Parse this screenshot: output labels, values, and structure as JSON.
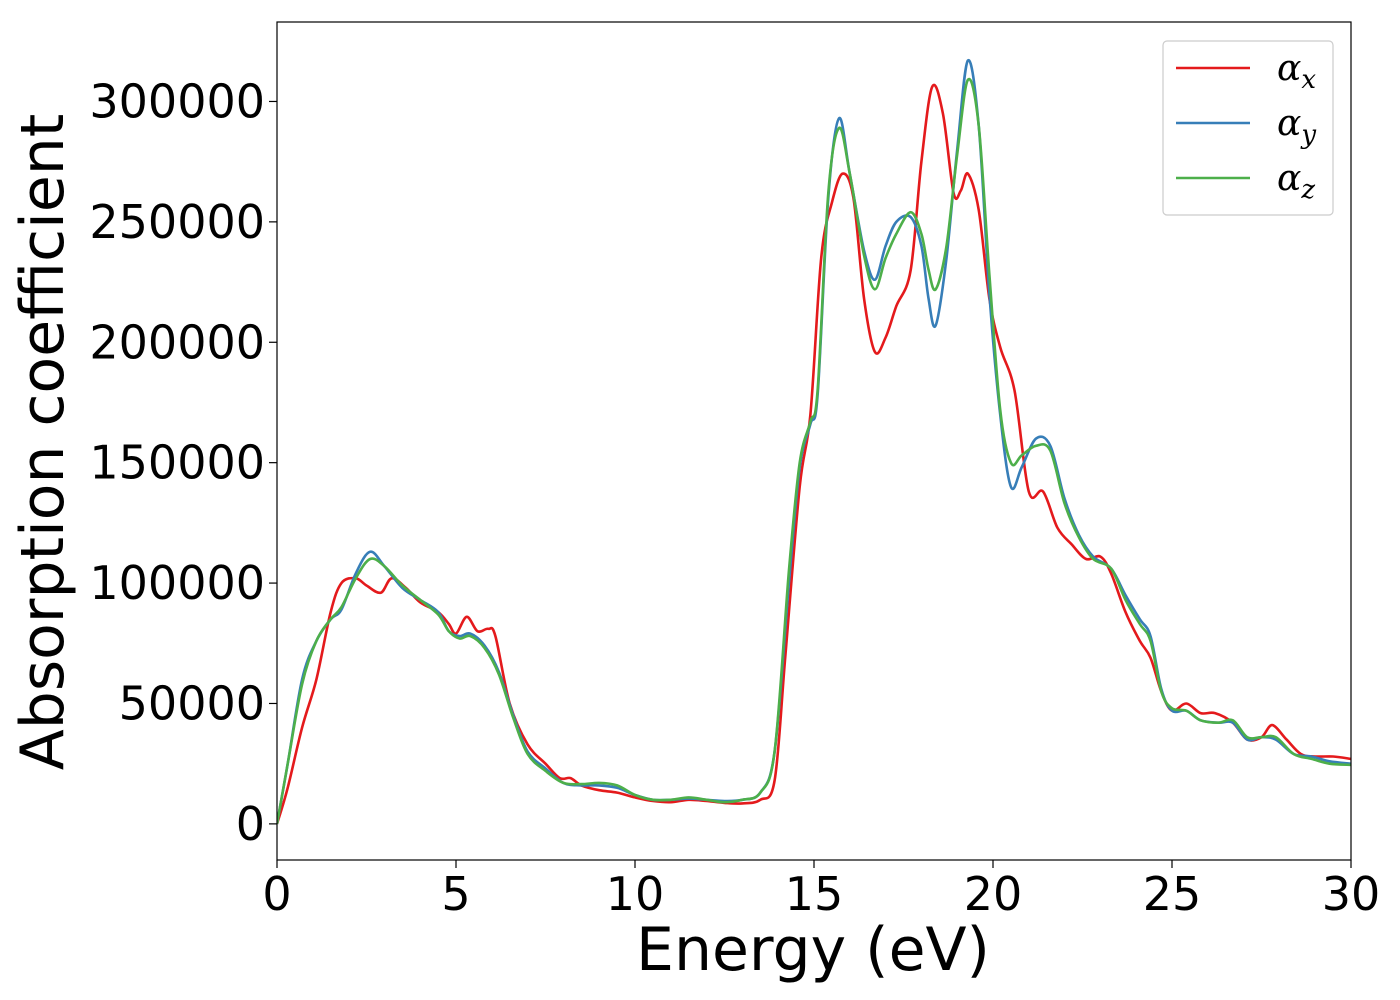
{
  "chart_data": {
    "type": "line",
    "title": "",
    "xlabel": "Energy (eV)",
    "ylabel": "Absorption coefficient",
    "xlim": [
      0,
      30
    ],
    "ylim": [
      -15000,
      333000
    ],
    "xticks": [
      0,
      5,
      10,
      15,
      20,
      25,
      30
    ],
    "xtick_labels": [
      "0",
      "5",
      "10",
      "15",
      "20",
      "25",
      "30"
    ],
    "yticks": [
      0,
      50000,
      100000,
      150000,
      200000,
      250000,
      300000
    ],
    "ytick_labels": [
      "0",
      "50000",
      "100000",
      "150000",
      "200000",
      "250000",
      "300000"
    ],
    "grid": false,
    "legend_position": "top-right",
    "series": [
      {
        "name": "α_x",
        "label_main": "α",
        "label_sub": "x",
        "color": "#e41a1c",
        "points": [
          [
            0,
            0
          ],
          [
            0.3,
            15000
          ],
          [
            0.7,
            40000
          ],
          [
            1.1,
            60000
          ],
          [
            1.5,
            88000
          ],
          [
            1.8,
            100000
          ],
          [
            2.2,
            102000
          ],
          [
            2.5,
            99000
          ],
          [
            2.9,
            96000
          ],
          [
            3.2,
            102000
          ],
          [
            3.6,
            98000
          ],
          [
            4.0,
            92000
          ],
          [
            4.5,
            88000
          ],
          [
            4.8,
            83000
          ],
          [
            5.0,
            79000
          ],
          [
            5.3,
            86000
          ],
          [
            5.6,
            80000
          ],
          [
            5.9,
            81000
          ],
          [
            6.1,
            78000
          ],
          [
            6.5,
            50000
          ],
          [
            7.0,
            33000
          ],
          [
            7.5,
            25000
          ],
          [
            7.9,
            19000
          ],
          [
            8.2,
            19000
          ],
          [
            8.5,
            16000
          ],
          [
            9.0,
            14000
          ],
          [
            9.5,
            13000
          ],
          [
            10.0,
            11000
          ],
          [
            10.5,
            9500
          ],
          [
            11.0,
            9000
          ],
          [
            11.5,
            10000
          ],
          [
            12.0,
            9500
          ],
          [
            12.5,
            8700
          ],
          [
            13.0,
            8500
          ],
          [
            13.5,
            10000
          ],
          [
            13.9,
            18000
          ],
          [
            14.2,
            70000
          ],
          [
            14.6,
            140000
          ],
          [
            14.9,
            170000
          ],
          [
            15.2,
            235000
          ],
          [
            15.5,
            258000
          ],
          [
            15.8,
            270000
          ],
          [
            16.1,
            260000
          ],
          [
            16.4,
            218000
          ],
          [
            16.7,
            196000
          ],
          [
            17.0,
            202000
          ],
          [
            17.3,
            215000
          ],
          [
            17.7,
            230000
          ],
          [
            18.0,
            275000
          ],
          [
            18.3,
            306000
          ],
          [
            18.6,
            295000
          ],
          [
            18.9,
            262000
          ],
          [
            19.1,
            263000
          ],
          [
            19.3,
            270000
          ],
          [
            19.6,
            255000
          ],
          [
            19.9,
            218000
          ],
          [
            20.2,
            198000
          ],
          [
            20.6,
            180000
          ],
          [
            21.0,
            138000
          ],
          [
            21.4,
            138000
          ],
          [
            21.8,
            123000
          ],
          [
            22.2,
            116000
          ],
          [
            22.6,
            110000
          ],
          [
            23.0,
            111000
          ],
          [
            23.3,
            104000
          ],
          [
            23.7,
            88000
          ],
          [
            24.1,
            76000
          ],
          [
            24.4,
            69000
          ],
          [
            24.7,
            55000
          ],
          [
            25.0,
            47000
          ],
          [
            25.4,
            50000
          ],
          [
            25.8,
            46000
          ],
          [
            26.2,
            46000
          ],
          [
            26.7,
            42000
          ],
          [
            27.1,
            35000
          ],
          [
            27.5,
            36000
          ],
          [
            27.8,
            41000
          ],
          [
            28.2,
            35000
          ],
          [
            28.6,
            29000
          ],
          [
            29.0,
            28000
          ],
          [
            29.5,
            28000
          ],
          [
            30.0,
            27000
          ]
        ]
      },
      {
        "name": "α_y",
        "label_main": "α",
        "label_sub": "y",
        "color": "#377eb8",
        "points": [
          [
            0,
            0
          ],
          [
            0.3,
            25000
          ],
          [
            0.7,
            60000
          ],
          [
            1.1,
            76000
          ],
          [
            1.5,
            85000
          ],
          [
            1.8,
            89000
          ],
          [
            2.2,
            104000
          ],
          [
            2.6,
            113000
          ],
          [
            3.0,
            107000
          ],
          [
            3.5,
            98000
          ],
          [
            4.0,
            93000
          ],
          [
            4.5,
            88000
          ],
          [
            4.8,
            80000
          ],
          [
            5.1,
            78000
          ],
          [
            5.4,
            79000
          ],
          [
            5.8,
            74000
          ],
          [
            6.2,
            63000
          ],
          [
            6.6,
            45000
          ],
          [
            7.0,
            30000
          ],
          [
            7.5,
            23000
          ],
          [
            8.0,
            17000
          ],
          [
            8.5,
            16000
          ],
          [
            9.0,
            16000
          ],
          [
            9.5,
            15000
          ],
          [
            10.0,
            12000
          ],
          [
            10.5,
            10000
          ],
          [
            11.0,
            10000
          ],
          [
            11.5,
            10500
          ],
          [
            12.0,
            10000
          ],
          [
            12.5,
            9500
          ],
          [
            13.0,
            10000
          ],
          [
            13.5,
            13000
          ],
          [
            13.9,
            30000
          ],
          [
            14.3,
            100000
          ],
          [
            14.6,
            148000
          ],
          [
            14.9,
            166000
          ],
          [
            15.1,
            178000
          ],
          [
            15.4,
            260000
          ],
          [
            15.7,
            293000
          ],
          [
            16.0,
            270000
          ],
          [
            16.4,
            238000
          ],
          [
            16.7,
            226000
          ],
          [
            17.0,
            240000
          ],
          [
            17.3,
            250000
          ],
          [
            17.7,
            252000
          ],
          [
            18.0,
            240000
          ],
          [
            18.2,
            218000
          ],
          [
            18.4,
            207000
          ],
          [
            18.7,
            235000
          ],
          [
            19.0,
            280000
          ],
          [
            19.3,
            317000
          ],
          [
            19.6,
            290000
          ],
          [
            19.9,
            220000
          ],
          [
            20.2,
            170000
          ],
          [
            20.5,
            140000
          ],
          [
            20.8,
            148000
          ],
          [
            21.2,
            160000
          ],
          [
            21.6,
            157000
          ],
          [
            22.0,
            135000
          ],
          [
            22.4,
            120000
          ],
          [
            22.8,
            111000
          ],
          [
            23.3,
            106000
          ],
          [
            23.7,
            95000
          ],
          [
            24.1,
            85000
          ],
          [
            24.4,
            78000
          ],
          [
            24.7,
            56000
          ],
          [
            25.0,
            47000
          ],
          [
            25.4,
            47000
          ],
          [
            25.8,
            43000
          ],
          [
            26.3,
            42000
          ],
          [
            26.7,
            42000
          ],
          [
            27.1,
            35000
          ],
          [
            27.5,
            36000
          ],
          [
            27.9,
            35000
          ],
          [
            28.4,
            29000
          ],
          [
            28.9,
            28000
          ],
          [
            29.4,
            26000
          ],
          [
            30.0,
            25000
          ]
        ]
      },
      {
        "name": "α_z",
        "label_main": "α",
        "label_sub": "z",
        "color": "#4daf4a",
        "points": [
          [
            0,
            0
          ],
          [
            0.3,
            25000
          ],
          [
            0.7,
            58000
          ],
          [
            1.1,
            76000
          ],
          [
            1.5,
            85000
          ],
          [
            1.8,
            90000
          ],
          [
            2.2,
            102000
          ],
          [
            2.6,
            110000
          ],
          [
            3.0,
            107000
          ],
          [
            3.5,
            99000
          ],
          [
            4.0,
            93000
          ],
          [
            4.5,
            87000
          ],
          [
            4.8,
            80000
          ],
          [
            5.1,
            77000
          ],
          [
            5.4,
            78000
          ],
          [
            5.8,
            73000
          ],
          [
            6.2,
            62000
          ],
          [
            6.6,
            44000
          ],
          [
            7.0,
            29000
          ],
          [
            7.5,
            22000
          ],
          [
            8.0,
            17000
          ],
          [
            8.5,
            16500
          ],
          [
            9.0,
            17000
          ],
          [
            9.5,
            16000
          ],
          [
            10.0,
            12000
          ],
          [
            10.5,
            10000
          ],
          [
            11.0,
            10000
          ],
          [
            11.5,
            11000
          ],
          [
            12.0,
            10000
          ],
          [
            12.5,
            9000
          ],
          [
            13.0,
            10000
          ],
          [
            13.5,
            13000
          ],
          [
            13.9,
            30000
          ],
          [
            14.3,
            105000
          ],
          [
            14.6,
            150000
          ],
          [
            14.9,
            167000
          ],
          [
            15.1,
            180000
          ],
          [
            15.4,
            262000
          ],
          [
            15.7,
            289000
          ],
          [
            16.0,
            270000
          ],
          [
            16.4,
            236000
          ],
          [
            16.7,
            222000
          ],
          [
            17.0,
            235000
          ],
          [
            17.3,
            245000
          ],
          [
            17.7,
            254000
          ],
          [
            18.0,
            245000
          ],
          [
            18.2,
            230000
          ],
          [
            18.4,
            222000
          ],
          [
            18.7,
            240000
          ],
          [
            19.0,
            278000
          ],
          [
            19.3,
            309000
          ],
          [
            19.6,
            290000
          ],
          [
            19.9,
            228000
          ],
          [
            20.2,
            172000
          ],
          [
            20.5,
            150000
          ],
          [
            20.8,
            153000
          ],
          [
            21.2,
            157000
          ],
          [
            21.6,
            155000
          ],
          [
            22.0,
            133000
          ],
          [
            22.4,
            119000
          ],
          [
            22.8,
            110000
          ],
          [
            23.3,
            106000
          ],
          [
            23.7,
            93000
          ],
          [
            24.1,
            83000
          ],
          [
            24.4,
            76000
          ],
          [
            24.7,
            55000
          ],
          [
            25.0,
            48000
          ],
          [
            25.4,
            47000
          ],
          [
            25.8,
            43000
          ],
          [
            26.3,
            42000
          ],
          [
            26.7,
            43000
          ],
          [
            27.1,
            36000
          ],
          [
            27.5,
            36000
          ],
          [
            27.9,
            36000
          ],
          [
            28.4,
            29000
          ],
          [
            28.9,
            27000
          ],
          [
            29.4,
            25000
          ],
          [
            30.0,
            24500
          ]
        ]
      }
    ]
  }
}
